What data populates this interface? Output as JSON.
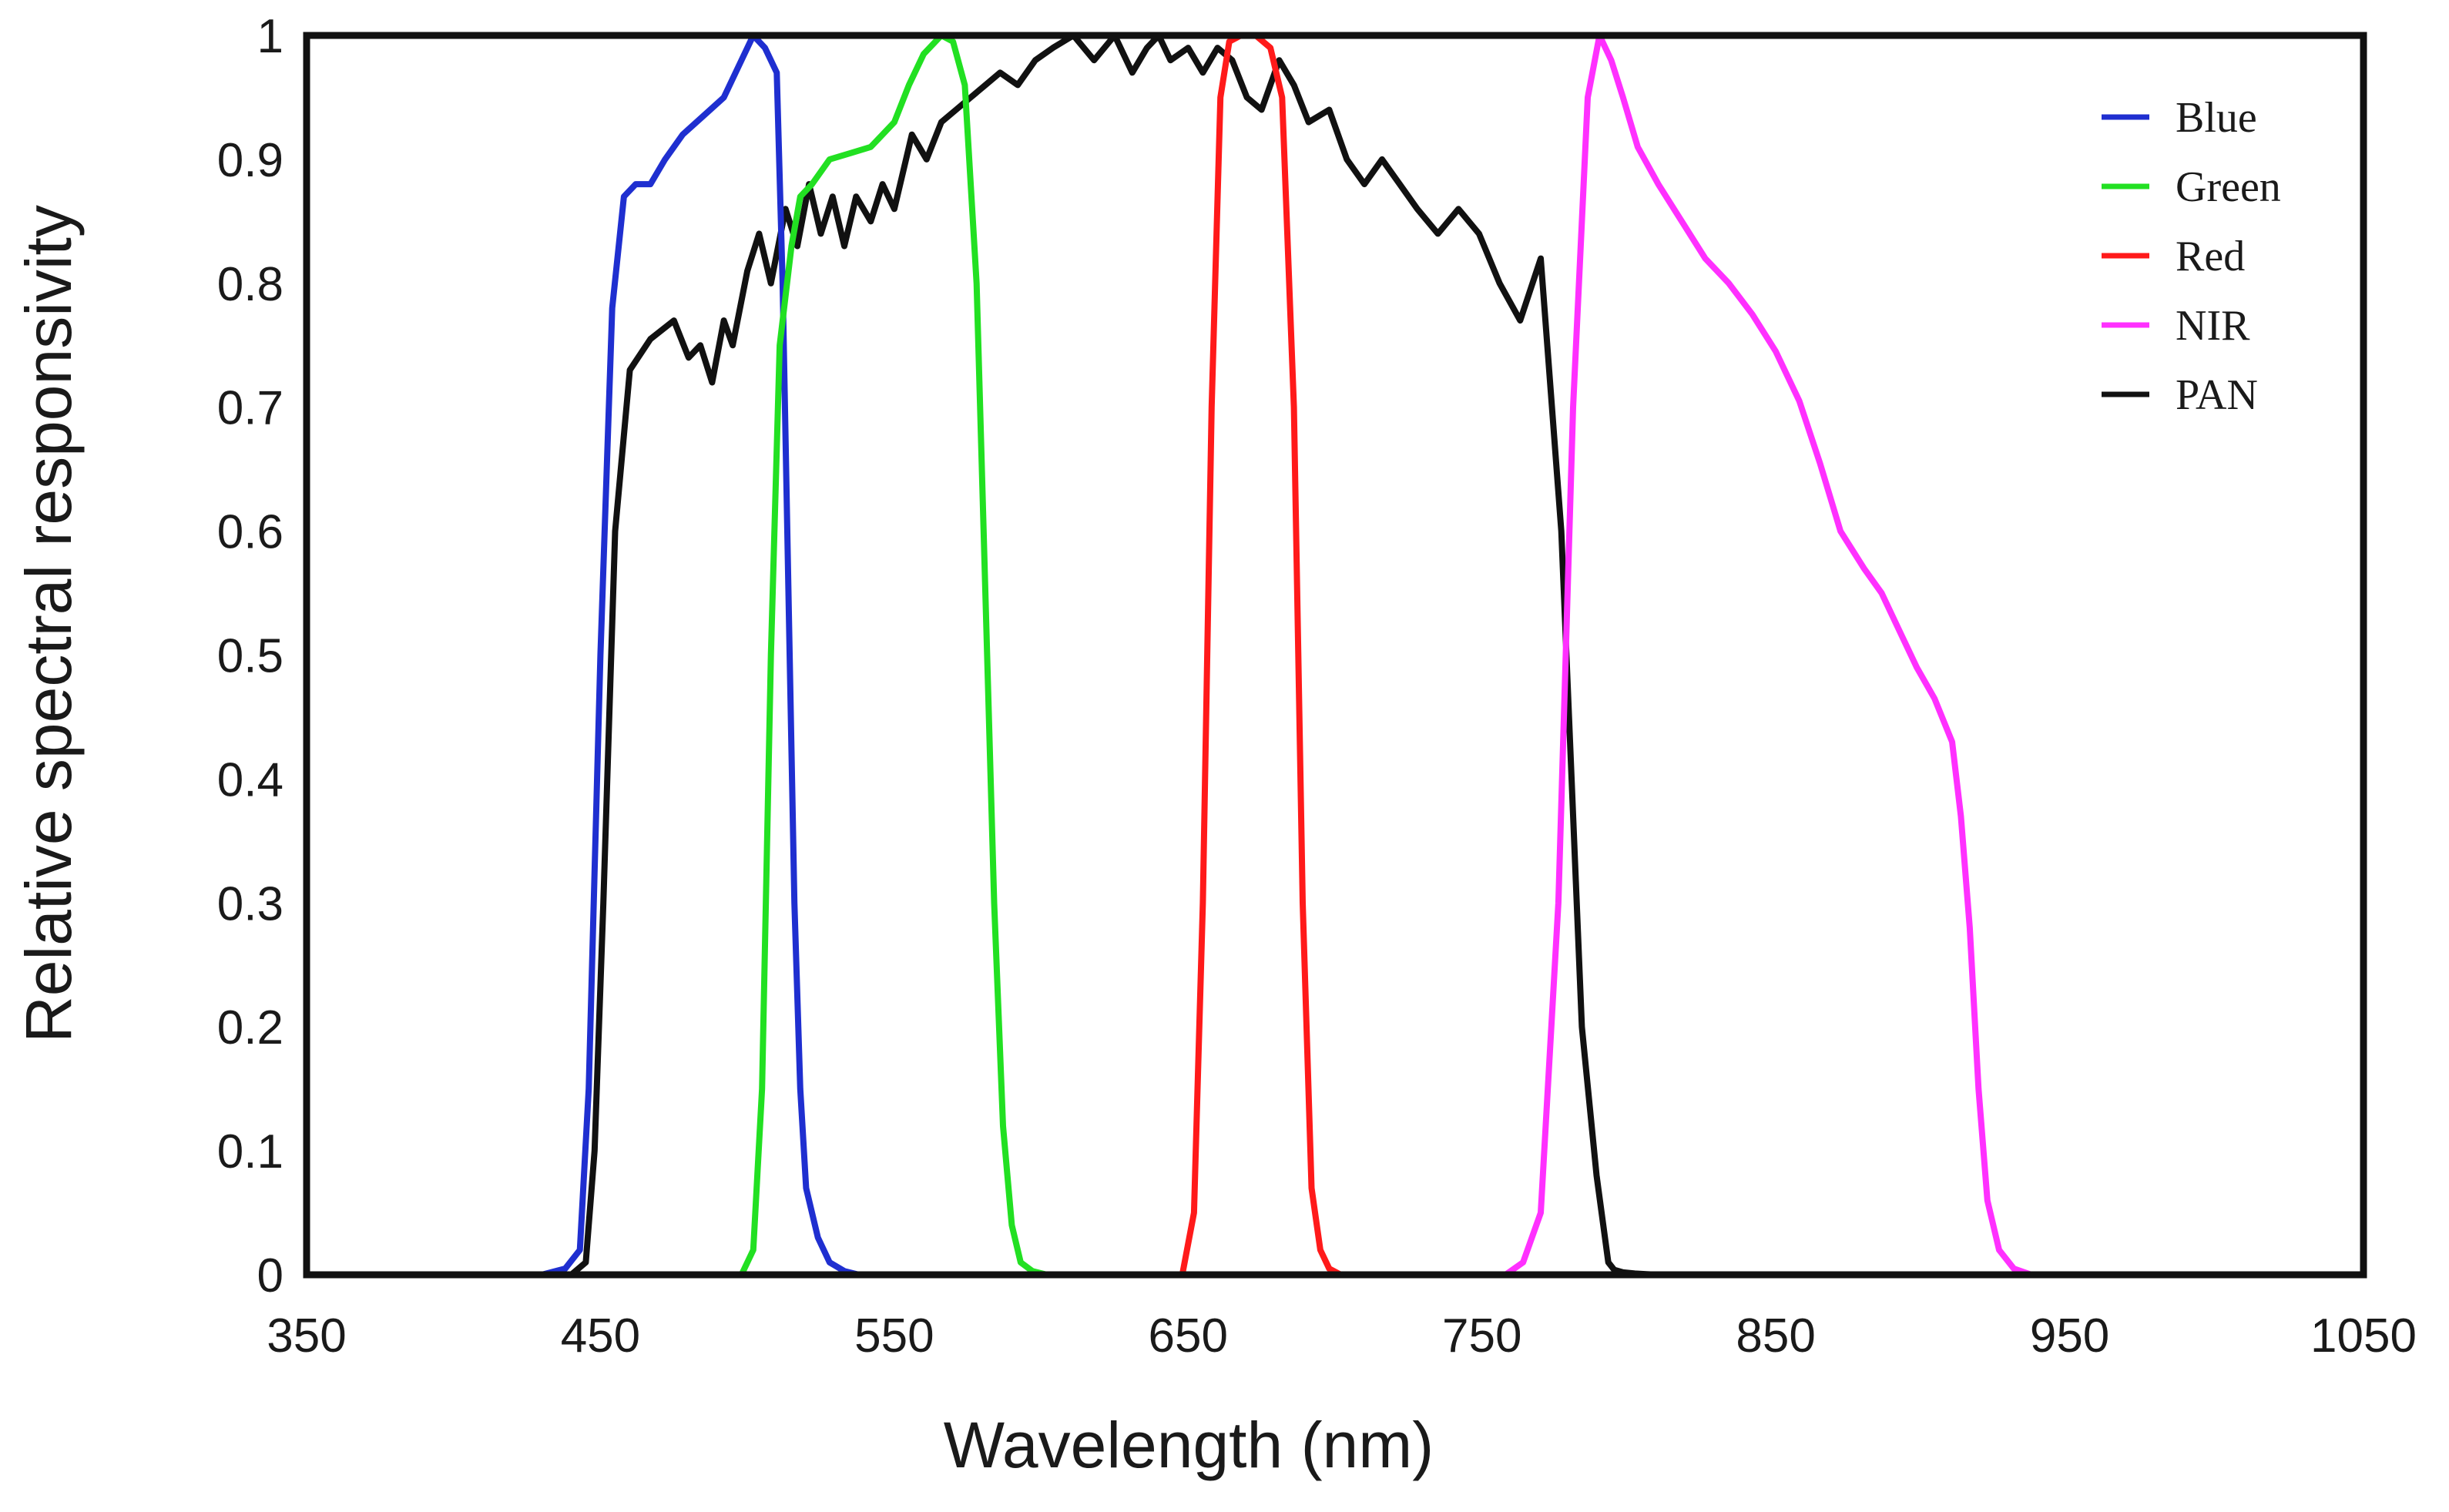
{
  "chart_data": {
    "type": "line",
    "title": "",
    "xlabel": "Wavelength (nm)",
    "ylabel": "Relative spectral responsivity",
    "xlim": [
      350,
      1050
    ],
    "ylim": [
      0,
      1
    ],
    "xticks": [
      350,
      450,
      550,
      650,
      750,
      850,
      950,
      1050
    ],
    "yticks": [
      0,
      0.1,
      0.2,
      0.3,
      0.4,
      0.5,
      0.6,
      0.7,
      0.8,
      0.9,
      1
    ],
    "ytick_labels": [
      "0",
      "0.1",
      "0.2",
      "0.3",
      "0.4",
      "0.5",
      "0.6",
      "0.7",
      "0.8",
      "0.9",
      "1"
    ],
    "grid": false,
    "legend_position": "top-right",
    "series": [
      {
        "name": "Blue",
        "color": "#1f2fd0",
        "x": [
          430,
          438,
          443,
          446,
          450,
          454,
          458,
          462,
          467,
          472,
          478,
          485,
          492,
          498,
          502,
          506,
          510,
          512,
          514,
          516,
          518,
          520,
          524,
          528,
          533,
          538
        ],
        "y": [
          0,
          0.005,
          0.02,
          0.15,
          0.5,
          0.78,
          0.87,
          0.88,
          0.88,
          0.9,
          0.92,
          0.935,
          0.95,
          0.98,
          1.0,
          0.99,
          0.97,
          0.8,
          0.55,
          0.3,
          0.15,
          0.07,
          0.03,
          0.01,
          0.003,
          0
        ]
      },
      {
        "name": "Green",
        "color": "#22e022",
        "x": [
          498,
          502,
          505,
          508,
          511,
          515,
          518,
          522,
          528,
          535,
          542,
          550,
          555,
          560,
          566,
          570,
          574,
          578,
          581,
          584,
          587,
          590,
          593,
          597,
          602
        ],
        "y": [
          0,
          0.02,
          0.15,
          0.5,
          0.75,
          0.83,
          0.87,
          0.88,
          0.9,
          0.905,
          0.91,
          0.93,
          0.96,
          0.985,
          1.0,
          0.995,
          0.96,
          0.8,
          0.55,
          0.3,
          0.12,
          0.04,
          0.01,
          0.003,
          0
        ]
      },
      {
        "name": "Red",
        "color": "#ff1a1a",
        "x": [
          648,
          652,
          655,
          658,
          661,
          664,
          668,
          673,
          678,
          682,
          686,
          689,
          692,
          695,
          698,
          702
        ],
        "y": [
          0,
          0.05,
          0.3,
          0.7,
          0.95,
          0.995,
          1.0,
          1.0,
          0.99,
          0.95,
          0.7,
          0.3,
          0.07,
          0.02,
          0.005,
          0
        ]
      },
      {
        "name": "NIR",
        "color": "#ff30ff",
        "x": [
          758,
          764,
          770,
          776,
          781,
          786,
          790,
          794,
          798,
          803,
          810,
          818,
          826,
          834,
          842,
          850,
          858,
          865,
          872,
          880,
          886,
          892,
          898,
          904,
          910,
          913,
          916,
          919,
          922,
          926,
          931,
          937
        ],
        "y": [
          0,
          0.01,
          0.05,
          0.3,
          0.7,
          0.95,
          1.0,
          0.98,
          0.95,
          0.91,
          0.88,
          0.85,
          0.82,
          0.8,
          0.775,
          0.745,
          0.705,
          0.655,
          0.6,
          0.57,
          0.55,
          0.52,
          0.49,
          0.465,
          0.43,
          0.37,
          0.28,
          0.15,
          0.06,
          0.02,
          0.005,
          0
        ]
      },
      {
        "name": "PAN",
        "color": "#111111",
        "x": [
          440,
          445,
          448,
          451,
          455,
          460,
          467,
          475,
          480,
          484,
          488,
          492,
          495,
          500,
          504,
          508,
          513,
          517,
          521,
          525,
          529,
          533,
          537,
          542,
          546,
          550,
          556,
          561,
          566,
          571,
          576,
          581,
          586,
          592,
          598,
          604,
          611,
          618,
          625,
          631,
          636,
          640,
          644,
          650,
          655,
          660,
          665,
          670,
          675,
          681,
          686,
          691,
          698,
          704,
          710,
          716,
          722,
          728,
          735,
          742,
          749,
          756,
          763,
          770,
          777,
          784,
          789,
          793,
          795,
          798,
          802,
          806,
          810,
          813,
          817,
          825,
          832
        ],
        "y": [
          0,
          0.01,
          0.1,
          0.3,
          0.6,
          0.73,
          0.755,
          0.77,
          0.74,
          0.75,
          0.72,
          0.77,
          0.75,
          0.81,
          0.84,
          0.8,
          0.86,
          0.83,
          0.88,
          0.84,
          0.87,
          0.83,
          0.87,
          0.85,
          0.88,
          0.86,
          0.92,
          0.9,
          0.93,
          0.94,
          0.95,
          0.96,
          0.97,
          0.96,
          0.98,
          0.99,
          1.0,
          0.98,
          1.0,
          0.97,
          0.99,
          1.0,
          0.98,
          0.99,
          0.97,
          0.99,
          0.98,
          0.95,
          0.94,
          0.98,
          0.96,
          0.93,
          0.94,
          0.9,
          0.88,
          0.9,
          0.88,
          0.86,
          0.84,
          0.86,
          0.84,
          0.8,
          0.77,
          0.82,
          0.6,
          0.2,
          0.08,
          0.01,
          0.004,
          0.002,
          0.001,
          0.0005,
          0,
          0,
          0,
          0,
          0
        ]
      }
    ]
  }
}
